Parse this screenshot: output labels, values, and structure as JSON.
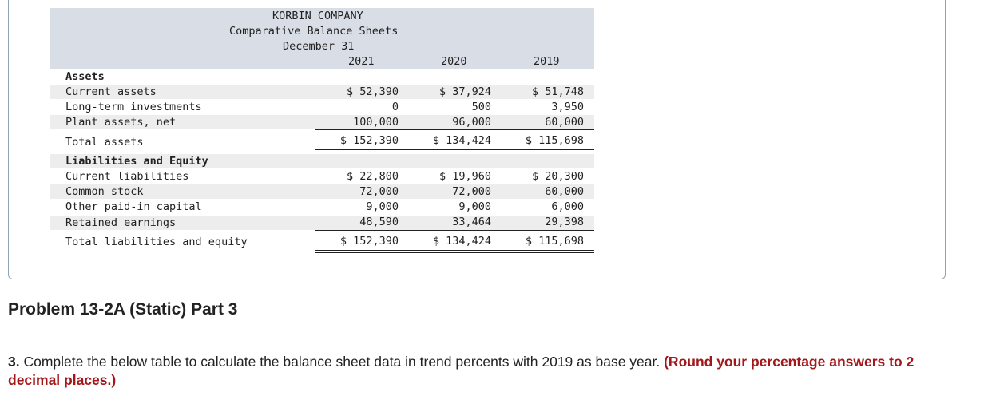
{
  "statement": {
    "company": "KORBIN COMPANY",
    "title": "Comparative Balance Sheets",
    "date": "December 31",
    "years": [
      "2021",
      "2020",
      "2019"
    ],
    "assets_heading": "Assets",
    "assets": [
      {
        "label": "Current assets",
        "values": [
          "$ 52,390",
          "$ 37,924",
          "$ 51,748"
        ]
      },
      {
        "label": "Long-term investments",
        "values": [
          "0",
          "500",
          "3,950"
        ]
      },
      {
        "label": "Plant assets, net",
        "values": [
          "100,000",
          "96,000",
          "60,000"
        ]
      }
    ],
    "total_assets": {
      "label": "Total assets",
      "values": [
        "$ 152,390",
        "$ 134,424",
        "$ 115,698"
      ]
    },
    "liab_heading": "Liabilities and Equity",
    "liabilities": [
      {
        "label": "Current liabilities",
        "values": [
          "$ 22,800",
          "$ 19,960",
          "$ 20,300"
        ]
      },
      {
        "label": "Common stock",
        "values": [
          "72,000",
          "72,000",
          "60,000"
        ]
      },
      {
        "label": "Other paid-in capital",
        "values": [
          "9,000",
          "9,000",
          "6,000"
        ]
      },
      {
        "label": "Retained earnings",
        "values": [
          "48,590",
          "33,464",
          "29,398"
        ]
      }
    ],
    "total_liab": {
      "label": "Total liabilities and equity",
      "values": [
        "$ 152,390",
        "$ 134,424",
        "$ 115,698"
      ]
    }
  },
  "problem": {
    "title": "Problem 13-2A (Static) Part 3",
    "instruction_number": "3.",
    "instruction": " Complete the below table to calculate the balance sheet data in trend percents with 2019 as base year. ",
    "instruction_highlight": "(Round your percentage answers to 2 decimal places.)"
  }
}
